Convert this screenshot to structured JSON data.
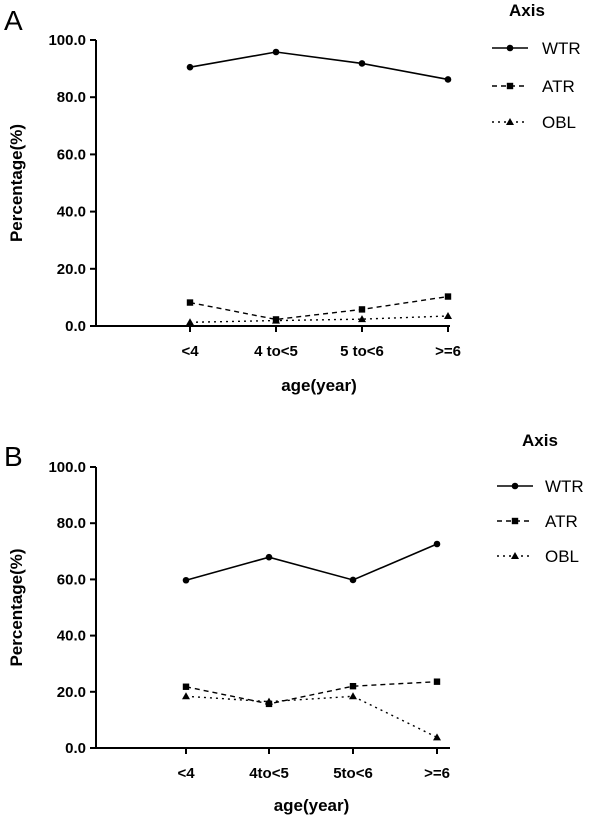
{
  "chart_data": [
    {
      "panel": "A",
      "type": "line",
      "categories": [
        "<4",
        "4 to<5",
        "5 to<6",
        ">=6"
      ],
      "xlabel": "age(year)",
      "ylabel": "Percentage(%)",
      "ylim": [
        0,
        100
      ],
      "yticks": [
        "0.0",
        "20.0",
        "40.0",
        "60.0",
        "80.0",
        "100.0"
      ],
      "legend_title": "Axis",
      "legend_position": "top-right",
      "grid": false,
      "series": [
        {
          "name": "WTR",
          "values": [
            90.5,
            95.8,
            91.8,
            86.2
          ],
          "marker": "circle",
          "line": "solid"
        },
        {
          "name": "ATR",
          "values": [
            8.2,
            2.3,
            5.8,
            10.3
          ],
          "marker": "square",
          "line": "dashed"
        },
        {
          "name": "OBL",
          "values": [
            1.3,
            1.9,
            2.4,
            3.5
          ],
          "marker": "triangle",
          "line": "dotted"
        }
      ]
    },
    {
      "panel": "B",
      "type": "line",
      "categories": [
        "<4",
        "4to<5",
        "5to<6",
        ">=6"
      ],
      "xlabel": "age(year)",
      "ylabel": "Percentage(%)",
      "ylim": [
        0,
        100
      ],
      "yticks": [
        "0.0",
        "20.0",
        "40.0",
        "60.0",
        "80.0",
        "100.0"
      ],
      "legend_title": "Axis",
      "legend_position": "top-right",
      "grid": false,
      "series": [
        {
          "name": "WTR",
          "values": [
            59.7,
            67.9,
            59.8,
            72.6
          ],
          "marker": "circle",
          "line": "solid"
        },
        {
          "name": "ATR",
          "values": [
            21.8,
            15.7,
            22.0,
            23.6
          ],
          "marker": "square",
          "line": "dashed"
        },
        {
          "name": "OBL",
          "values": [
            18.4,
            16.5,
            18.4,
            3.8
          ],
          "marker": "triangle",
          "line": "dotted"
        }
      ]
    }
  ]
}
